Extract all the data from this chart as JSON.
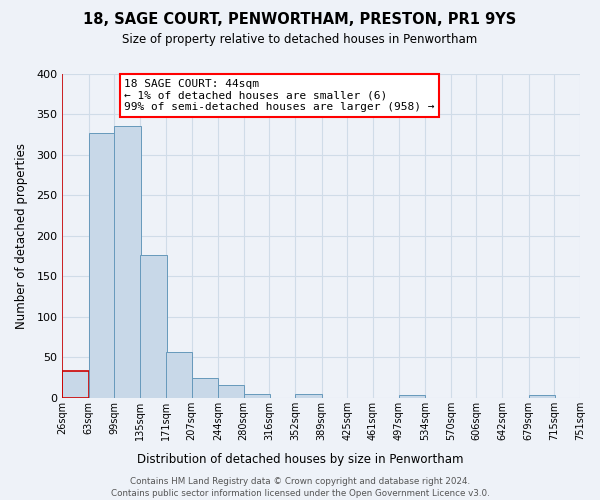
{
  "title": "18, SAGE COURT, PENWORTHAM, PRESTON, PR1 9YS",
  "subtitle": "Size of property relative to detached houses in Penwortham",
  "xlabel": "Distribution of detached houses by size in Penwortham",
  "ylabel": "Number of detached properties",
  "footer_line1": "Contains HM Land Registry data © Crown copyright and database right 2024.",
  "footer_line2": "Contains public sector information licensed under the Open Government Licence v3.0.",
  "annotation_line1": "18 SAGE COURT: 44sqm",
  "annotation_line2": "← 1% of detached houses are smaller (6)",
  "annotation_line3": "99% of semi-detached houses are larger (958) →",
  "bar_color": "#c8d8e8",
  "bar_edge_color": "#6699bb",
  "highlight_bar_edge_color": "#cc0000",
  "grid_color": "#d0dce8",
  "bg_color": "#eef2f8",
  "bin_edges": [
    26,
    63,
    99,
    135,
    171,
    207,
    244,
    280,
    316,
    352,
    389,
    425,
    461,
    497,
    534,
    570,
    606,
    642,
    679,
    715,
    751
  ],
  "bin_labels": [
    "26sqm",
    "63sqm",
    "99sqm",
    "135sqm",
    "171sqm",
    "207sqm",
    "244sqm",
    "280sqm",
    "316sqm",
    "352sqm",
    "389sqm",
    "425sqm",
    "461sqm",
    "497sqm",
    "534sqm",
    "570sqm",
    "606sqm",
    "642sqm",
    "679sqm",
    "715sqm",
    "751sqm"
  ],
  "bar_heights": [
    33,
    327,
    336,
    177,
    57,
    25,
    16,
    5,
    0,
    5,
    0,
    0,
    0,
    3,
    0,
    0,
    0,
    0,
    4,
    0
  ],
  "highlight_bar_index": 0,
  "ylim": [
    0,
    400
  ],
  "yticks": [
    0,
    50,
    100,
    150,
    200,
    250,
    300,
    350,
    400
  ],
  "property_sqm": 44
}
